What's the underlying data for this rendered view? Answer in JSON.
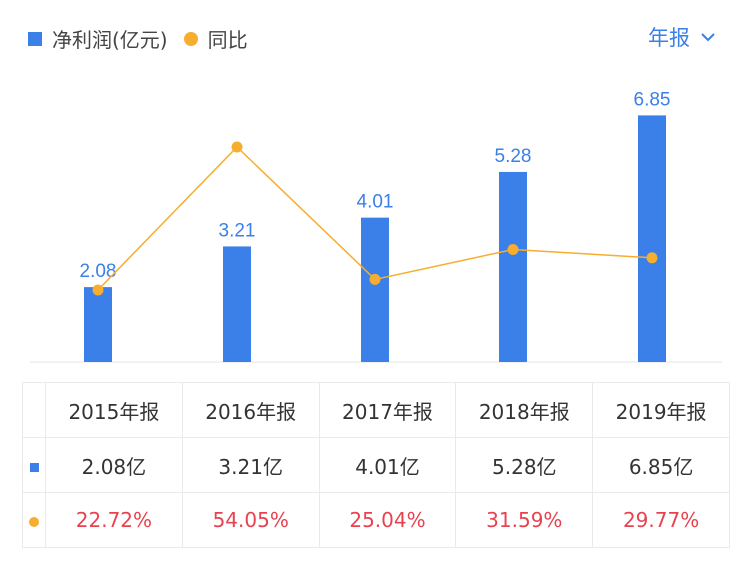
{
  "legend": {
    "bar_label": "净利润(亿元)",
    "line_label": "同比"
  },
  "period_selector": {
    "label": "年报",
    "icon": "chevron-down-icon"
  },
  "colors": {
    "bar": "#3b7fe8",
    "line": "#f7ae2e",
    "growth_text": "#e8424f"
  },
  "chart_data": {
    "type": "bar+line",
    "categories": [
      "2015年报",
      "2016年报",
      "2017年报",
      "2018年报",
      "2019年报"
    ],
    "series": [
      {
        "name": "净利润(亿元)",
        "type": "bar",
        "values": [
          2.08,
          3.21,
          4.01,
          5.28,
          6.85
        ],
        "labels": [
          "2.08",
          "3.21",
          "4.01",
          "5.28",
          "6.85"
        ]
      },
      {
        "name": "同比",
        "type": "line",
        "values": [
          22.72,
          54.05,
          25.04,
          31.59,
          29.77
        ]
      }
    ]
  },
  "table": {
    "headers": [
      "2015年报",
      "2016年报",
      "2017年报",
      "2018年报",
      "2019年报"
    ],
    "profit": [
      "2.08亿",
      "3.21亿",
      "4.01亿",
      "5.28亿",
      "6.85亿"
    ],
    "growth": [
      "22.72%",
      "54.05%",
      "25.04%",
      "31.59%",
      "29.77%"
    ]
  }
}
